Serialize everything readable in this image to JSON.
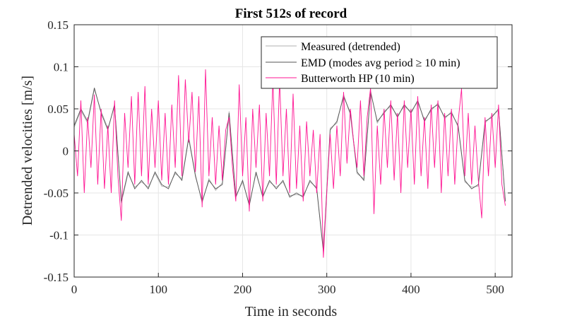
{
  "chart_data": {
    "type": "line",
    "title": "First 512s of record",
    "xlabel": "Time in seconds",
    "ylabel": "Detrended velocities [m/s]",
    "xlim": [
      0,
      520
    ],
    "ylim": [
      -0.15,
      0.15
    ],
    "xticks": [
      "0",
      "100",
      "200",
      "300",
      "400",
      "500"
    ],
    "xtick_values": [
      0,
      100,
      200,
      300,
      400,
      500
    ],
    "yticks": [
      "0.15",
      "0.1",
      "0.05",
      "0",
      "-0.05",
      "-0.1",
      "-0.15"
    ],
    "ytick_values": [
      0.15,
      0.1,
      0.05,
      0,
      -0.05,
      -0.1,
      -0.15
    ],
    "grid": true,
    "legend_position": "top-right",
    "series": [
      {
        "name": "Measured (detrended)",
        "color": "#b0b0b0",
        "points": [
          [
            0,
            0.028
          ],
          [
            8,
            0.048
          ],
          [
            16,
            0.033
          ],
          [
            24,
            0.073
          ],
          [
            32,
            0.047
          ],
          [
            40,
            0.027
          ],
          [
            48,
            0.053
          ],
          [
            56,
            -0.062
          ],
          [
            64,
            -0.027
          ],
          [
            72,
            -0.043
          ],
          [
            80,
            -0.037
          ],
          [
            88,
            -0.043
          ],
          [
            96,
            -0.027
          ],
          [
            104,
            -0.042
          ],
          [
            112,
            -0.043
          ],
          [
            120,
            -0.027
          ],
          [
            128,
            -0.033
          ],
          [
            136,
            0.017
          ],
          [
            144,
            -0.028
          ],
          [
            152,
            -0.062
          ],
          [
            160,
            -0.033
          ],
          [
            168,
            -0.047
          ],
          [
            176,
            -0.038
          ],
          [
            184,
            0.047
          ],
          [
            192,
            -0.053
          ],
          [
            200,
            -0.037
          ],
          [
            208,
            -0.063
          ],
          [
            216,
            -0.027
          ],
          [
            224,
            -0.053
          ],
          [
            232,
            -0.037
          ],
          [
            240,
            -0.043
          ],
          [
            248,
            -0.037
          ],
          [
            256,
            -0.053
          ],
          [
            264,
            -0.052
          ],
          [
            272,
            -0.053
          ],
          [
            280,
            -0.037
          ],
          [
            288,
            -0.043
          ],
          [
            296,
            -0.118
          ],
          [
            304,
            0.027
          ],
          [
            312,
            0.033
          ],
          [
            320,
            0.067
          ],
          [
            328,
            0.043
          ],
          [
            336,
            -0.027
          ],
          [
            344,
            -0.033
          ],
          [
            352,
            0.072
          ],
          [
            360,
            0.033
          ],
          [
            368,
            0.047
          ],
          [
            376,
            0.053
          ],
          [
            384,
            0.042
          ],
          [
            392,
            0.053
          ],
          [
            400,
            0.047
          ],
          [
            408,
            0.058
          ],
          [
            416,
            0.037
          ],
          [
            424,
            0.048
          ],
          [
            432,
            0.057
          ],
          [
            440,
            0.038
          ],
          [
            448,
            0.047
          ],
          [
            456,
            0.028
          ],
          [
            464,
            -0.037
          ],
          [
            472,
            -0.043
          ],
          [
            480,
            -0.042
          ],
          [
            488,
            0.033
          ],
          [
            496,
            0.042
          ],
          [
            504,
            0.048
          ],
          [
            512,
            -0.058
          ]
        ]
      },
      {
        "name": "EMD (modes avg period ≥ 10 min)",
        "color": "#555555",
        "points": [
          [
            0,
            0.03
          ],
          [
            8,
            0.05
          ],
          [
            16,
            0.035
          ],
          [
            24,
            0.075
          ],
          [
            32,
            0.045
          ],
          [
            40,
            0.025
          ],
          [
            48,
            0.055
          ],
          [
            56,
            -0.06
          ],
          [
            64,
            -0.025
          ],
          [
            72,
            -0.045
          ],
          [
            80,
            -0.035
          ],
          [
            88,
            -0.045
          ],
          [
            96,
            -0.025
          ],
          [
            104,
            -0.04
          ],
          [
            112,
            -0.045
          ],
          [
            120,
            -0.025
          ],
          [
            128,
            -0.035
          ],
          [
            136,
            0.015
          ],
          [
            144,
            -0.03
          ],
          [
            152,
            -0.06
          ],
          [
            160,
            -0.035
          ],
          [
            168,
            -0.045
          ],
          [
            176,
            -0.04
          ],
          [
            184,
            0.045
          ],
          [
            192,
            -0.055
          ],
          [
            200,
            -0.035
          ],
          [
            208,
            -0.065
          ],
          [
            216,
            -0.025
          ],
          [
            224,
            -0.055
          ],
          [
            232,
            -0.035
          ],
          [
            240,
            -0.045
          ],
          [
            248,
            -0.035
          ],
          [
            256,
            -0.055
          ],
          [
            264,
            -0.05
          ],
          [
            272,
            -0.055
          ],
          [
            280,
            -0.035
          ],
          [
            288,
            -0.045
          ],
          [
            296,
            -0.12
          ],
          [
            304,
            0.025
          ],
          [
            312,
            0.035
          ],
          [
            320,
            0.065
          ],
          [
            328,
            0.045
          ],
          [
            336,
            -0.025
          ],
          [
            344,
            -0.035
          ],
          [
            352,
            0.07
          ],
          [
            360,
            0.035
          ],
          [
            368,
            0.045
          ],
          [
            376,
            0.055
          ],
          [
            384,
            0.04
          ],
          [
            392,
            0.055
          ],
          [
            400,
            0.045
          ],
          [
            408,
            0.06
          ],
          [
            416,
            0.035
          ],
          [
            424,
            0.05
          ],
          [
            432,
            0.055
          ],
          [
            440,
            0.04
          ],
          [
            448,
            0.045
          ],
          [
            456,
            0.03
          ],
          [
            464,
            -0.035
          ],
          [
            472,
            -0.045
          ],
          [
            480,
            -0.04
          ],
          [
            488,
            0.035
          ],
          [
            496,
            0.04
          ],
          [
            504,
            0.05
          ],
          [
            512,
            -0.06
          ]
        ]
      },
      {
        "name": "Butterworth HP (10 min)",
        "color": "#ff1493",
        "points": [
          [
            0,
            0.02
          ],
          [
            4,
            -0.03
          ],
          [
            8,
            0.06
          ],
          [
            12,
            -0.05
          ],
          [
            16,
            0.04
          ],
          [
            20,
            -0.02
          ],
          [
            24,
            0.067
          ],
          [
            28,
            -0.04
          ],
          [
            32,
            0.05
          ],
          [
            36,
            -0.045
          ],
          [
            40,
            0.03
          ],
          [
            44,
            -0.05
          ],
          [
            48,
            0.06
          ],
          [
            52,
            -0.03
          ],
          [
            56,
            -0.083
          ],
          [
            60,
            0.045
          ],
          [
            64,
            -0.02
          ],
          [
            68,
            0.065
          ],
          [
            72,
            -0.04
          ],
          [
            76,
            0.07
          ],
          [
            80,
            -0.03
          ],
          [
            84,
            0.077
          ],
          [
            88,
            -0.04
          ],
          [
            92,
            0.05
          ],
          [
            96,
            -0.02
          ],
          [
            100,
            0.06
          ],
          [
            104,
            -0.035
          ],
          [
            108,
            0.045
          ],
          [
            112,
            -0.04
          ],
          [
            116,
            0.055
          ],
          [
            120,
            -0.02
          ],
          [
            124,
            0.09
          ],
          [
            128,
            -0.03
          ],
          [
            132,
            0.085
          ],
          [
            136,
            0.01
          ],
          [
            140,
            0.07
          ],
          [
            144,
            -0.025
          ],
          [
            148,
            0.065
          ],
          [
            152,
            -0.067
          ],
          [
            156,
            0.097
          ],
          [
            160,
            -0.03
          ],
          [
            164,
            0.04
          ],
          [
            168,
            -0.04
          ],
          [
            172,
            0.03
          ],
          [
            176,
            -0.035
          ],
          [
            180,
            0.025
          ],
          [
            184,
            0.04
          ],
          [
            188,
            -0.02
          ],
          [
            192,
            -0.06
          ],
          [
            196,
            0.079
          ],
          [
            200,
            -0.03
          ],
          [
            204,
            0.04
          ],
          [
            208,
            -0.072
          ],
          [
            212,
            0.05
          ],
          [
            216,
            -0.02
          ],
          [
            220,
            0.055
          ],
          [
            224,
            -0.06
          ],
          [
            228,
            0.045
          ],
          [
            232,
            -0.03
          ],
          [
            236,
            0.085
          ],
          [
            240,
            -0.04
          ],
          [
            244,
            0.085
          ],
          [
            248,
            -0.03
          ],
          [
            252,
            0.05
          ],
          [
            256,
            -0.05
          ],
          [
            260,
            0.068
          ],
          [
            264,
            -0.045
          ],
          [
            268,
            0.03
          ],
          [
            272,
            -0.06
          ],
          [
            276,
            0.035
          ],
          [
            280,
            -0.03
          ],
          [
            284,
            0.025
          ],
          [
            288,
            -0.05
          ],
          [
            292,
            0.02
          ],
          [
            296,
            -0.127
          ],
          [
            300,
            -0.05
          ],
          [
            304,
            0.02
          ],
          [
            308,
            -0.045
          ],
          [
            312,
            0.03
          ],
          [
            316,
            -0.03
          ],
          [
            320,
            0.07
          ],
          [
            324,
            -0.015
          ],
          [
            328,
            0.05
          ],
          [
            332,
            0.01
          ],
          [
            336,
            -0.02
          ],
          [
            340,
            0.06
          ],
          [
            344,
            -0.03
          ],
          [
            348,
            0.04
          ],
          [
            352,
            0.075
          ],
          [
            356,
            -0.075
          ],
          [
            360,
            0.03
          ],
          [
            364,
            -0.04
          ],
          [
            368,
            0.05
          ],
          [
            372,
            -0.02
          ],
          [
            376,
            0.06
          ],
          [
            380,
            -0.035
          ],
          [
            384,
            0.045
          ],
          [
            388,
            -0.05
          ],
          [
            392,
            0.06
          ],
          [
            396,
            -0.02
          ],
          [
            400,
            0.05
          ],
          [
            404,
            -0.04
          ],
          [
            408,
            0.065
          ],
          [
            412,
            -0.03
          ],
          [
            416,
            0.04
          ],
          [
            420,
            -0.045
          ],
          [
            424,
            0.055
          ],
          [
            428,
            -0.02
          ],
          [
            432,
            0.06
          ],
          [
            436,
            -0.05
          ],
          [
            440,
            0.045
          ],
          [
            444,
            -0.03
          ],
          [
            448,
            0.05
          ],
          [
            452,
            -0.04
          ],
          [
            456,
            0.035
          ],
          [
            460,
            0.074
          ],
          [
            464,
            -0.03
          ],
          [
            468,
            0.045
          ],
          [
            472,
            -0.04
          ],
          [
            476,
            0.03
          ],
          [
            480,
            -0.035
          ],
          [
            484,
            -0.08
          ],
          [
            488,
            0.04
          ],
          [
            492,
            -0.03
          ],
          [
            496,
            0.045
          ],
          [
            500,
            -0.02
          ],
          [
            504,
            0.055
          ],
          [
            508,
            -0.04
          ],
          [
            512,
            -0.065
          ]
        ]
      }
    ]
  }
}
